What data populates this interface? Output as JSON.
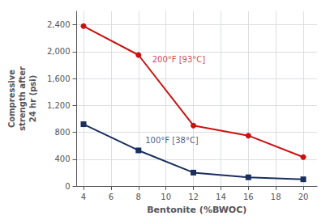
{
  "chart_data": {
    "type": "line",
    "xlabel": "Bentonite (%BWOC)",
    "ylabel": "Compressive\nstrength after\n24 hr (psi)",
    "series": [
      {
        "color": "#cc1111",
        "marker": "circle",
        "x": [
          4,
          8,
          12,
          16,
          20
        ],
        "values": [
          2380,
          1950,
          900,
          750,
          430
        ]
      },
      {
        "color": "#1a2f5e",
        "marker": "square",
        "x": [
          4,
          8,
          12,
          16,
          20
        ],
        "values": [
          920,
          530,
          200,
          130,
          100
        ]
      }
    ],
    "annotations": [
      {
        "text": "200°F [93°C]",
        "x": 9.0,
        "y": 1820,
        "color": "#cc1111"
      },
      {
        "text": "100°F [38°C]",
        "x": 8.5,
        "y": 620,
        "color": "#1a2f5e"
      }
    ],
    "xlim": [
      3.5,
      21
    ],
    "xticks": [
      4,
      6,
      8,
      10,
      12,
      14,
      16,
      18,
      20
    ],
    "ylim": [
      0,
      2600
    ],
    "yticks": [
      0,
      400,
      800,
      {
        "value": 1200,
        "label": "1,200"
      },
      {
        "value": 1600,
        "label": "1,600"
      },
      {
        "value": 2000,
        "label": "2,000"
      },
      {
        "value": 2400,
        "label": "2,400"
      }
    ],
    "grid": true
  }
}
